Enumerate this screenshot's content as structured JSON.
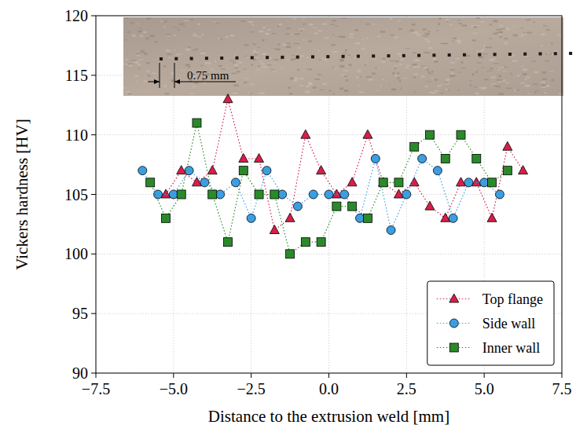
{
  "chart_data": {
    "type": "line",
    "xlabel": "Distance to the extrusion weld [mm]",
    "ylabel": "Vickers hardness [HV]",
    "annotations": [
      "0.75 mm"
    ],
    "xlim": [
      -7.5,
      7.5
    ],
    "xticks": [
      {
        "value": -7.5,
        "label": "−7.5"
      },
      {
        "value": -5,
        "label": "−5.0"
      },
      {
        "value": -2.5,
        "label": "−2.5"
      },
      {
        "value": 0,
        "label": "0.0"
      },
      {
        "value": 2.5,
        "label": "2.5"
      },
      {
        "value": 5,
        "label": "5.0"
      },
      {
        "value": 7.5,
        "label": "7.5"
      }
    ],
    "ylim": [
      90,
      120
    ],
    "yticks": [
      90,
      95,
      100,
      105,
      110,
      115,
      120
    ],
    "grid": true,
    "legend": "lower right",
    "series": [
      {
        "name": "Top flange",
        "color": "#d81e4a",
        "marker": "triangle",
        "line_style": "dotted",
        "x": [
          -5.25,
          -4.75,
          -4.25,
          -3.75,
          -3.25,
          -2.75,
          -2.25,
          -1.75,
          -1.25,
          -0.75,
          -0.25,
          0.25,
          0.75,
          1.25,
          1.75,
          2.25,
          2.75,
          3.25,
          3.75,
          4.25,
          4.75,
          5.25,
          5.75,
          6.25
        ],
        "values": [
          105,
          107,
          106,
          107,
          113,
          108,
          108,
          102,
          103,
          110,
          107,
          105,
          106,
          110,
          106,
          105,
          106,
          104,
          103,
          106,
          106,
          103,
          109,
          107
        ]
      },
      {
        "name": "Side wall",
        "color": "#3b9ee3",
        "marker": "circle",
        "line_style": "dotted",
        "x": [
          -6,
          -5.5,
          -5,
          -4.5,
          -4,
          -3.5,
          -3,
          -2.5,
          -2,
          -1.5,
          -1,
          -0.5,
          0,
          0.5,
          1,
          1.5,
          2,
          2.5,
          3,
          3.5,
          4,
          4.5,
          5,
          5.5
        ],
        "values": [
          107,
          105,
          105,
          107,
          106,
          105,
          106,
          103,
          107,
          105,
          104,
          105,
          105,
          105,
          103,
          108,
          102,
          105,
          108,
          107,
          103,
          106,
          106,
          105
        ]
      },
      {
        "name": "Inner wall",
        "color": "#2a8a2a",
        "marker": "square",
        "line_style": "dotted",
        "x": [
          -5.75,
          -5.25,
          -4.75,
          -4.25,
          -3.75,
          -3.25,
          -2.75,
          -2.25,
          -1.75,
          -1.25,
          -0.75,
          -0.25,
          0.25,
          0.75,
          1.25,
          1.75,
          2.25,
          2.75,
          3.25,
          3.75,
          4.25,
          4.75,
          5.25,
          5.75
        ],
        "values": [
          106,
          103,
          105,
          111,
          105,
          101,
          107,
          105,
          105,
          100,
          101,
          101,
          104,
          104,
          103,
          106,
          106,
          109,
          110,
          108,
          110,
          108,
          106,
          107
        ]
      }
    ]
  }
}
